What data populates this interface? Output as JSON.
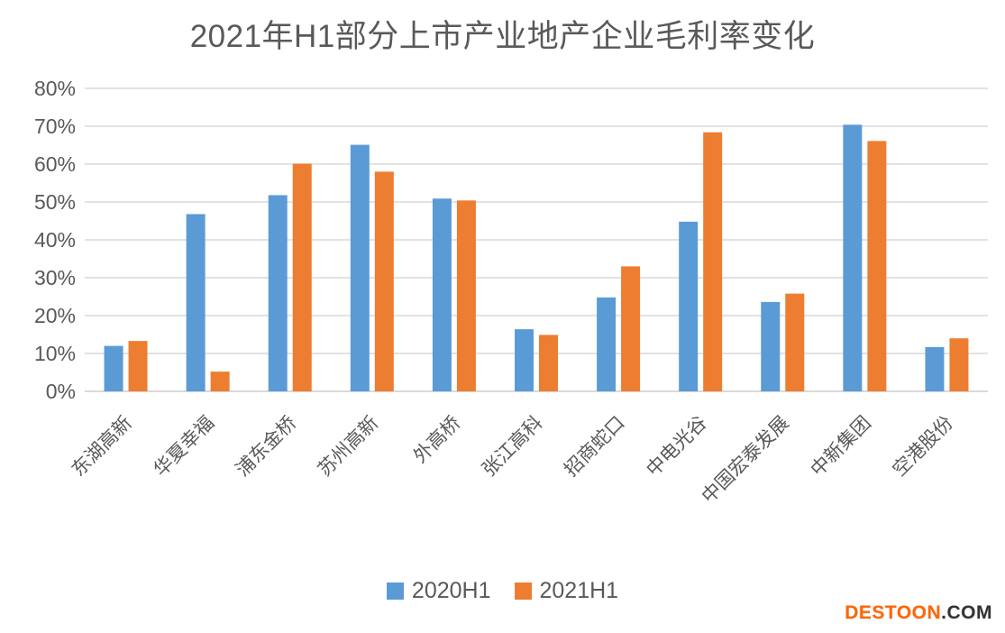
{
  "chart_data": {
    "type": "bar",
    "title": "2021年H1部分上市产业地产企业毛利率变化",
    "categories": [
      "东湖高新",
      "华夏幸福",
      "浦东金桥",
      "苏州高新",
      "外高桥",
      "张江高科",
      "招商蛇口",
      "中电光谷",
      "中国宏泰发展",
      "中新集团",
      "空港股份"
    ],
    "series": [
      {
        "name": "2020H1",
        "color": "#5B9BD5",
        "values": [
          12.0,
          46.8,
          51.8,
          65.1,
          50.9,
          16.4,
          24.8,
          44.8,
          23.6,
          70.4,
          11.7
        ]
      },
      {
        "name": "2021H1",
        "color": "#ED7D31",
        "values": [
          13.3,
          5.2,
          60.1,
          58.0,
          50.4,
          14.9,
          33.0,
          68.4,
          25.8,
          66.1,
          14.0
        ]
      }
    ],
    "xlabel": "",
    "ylabel": "",
    "ylim": [
      0,
      80
    ],
    "ytick_step": 10,
    "ytick_labels": [
      "0%",
      "10%",
      "20%",
      "30%",
      "40%",
      "50%",
      "60%",
      "70%",
      "80%"
    ],
    "grid": true,
    "legend_position": "bottom",
    "axis_text_color": "#595959",
    "gridline_color": "#D9D9D9"
  },
  "watermark": {
    "brand": "DESTOON",
    "suffix": ".COM",
    "brand_color": "#FF6600",
    "suffix_color": "#333333"
  }
}
